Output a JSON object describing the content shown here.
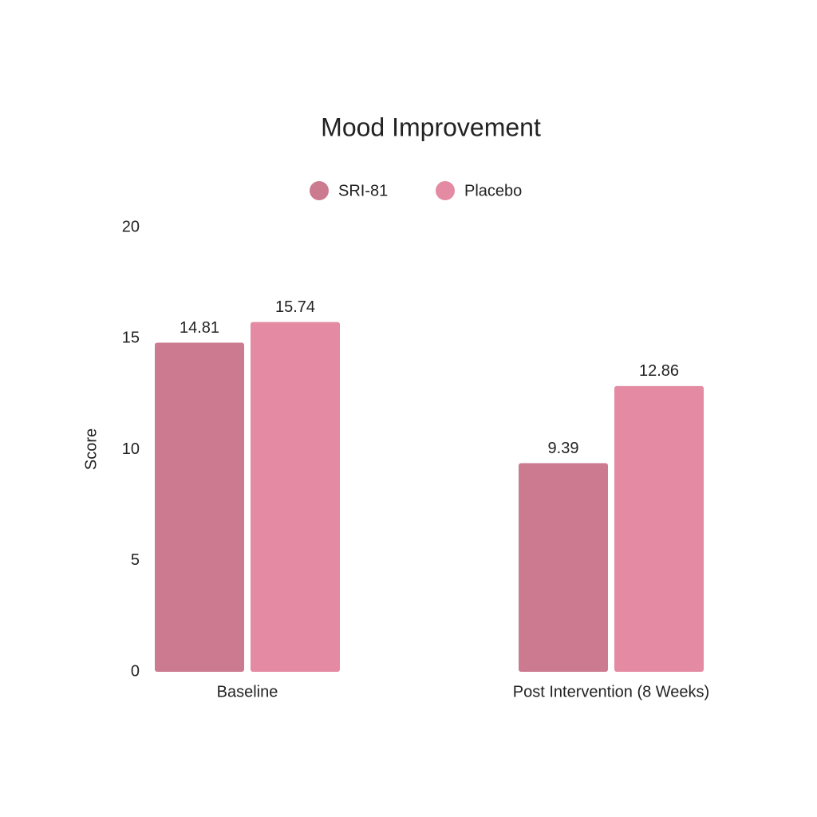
{
  "chart_data": {
    "type": "bar",
    "title": "Mood Improvement",
    "y_label": "Score",
    "categories": [
      "Baseline",
      "Post Intervention (8 Weeks)"
    ],
    "series": [
      {
        "name": "SRI-81",
        "color": "#cc7a90",
        "values": [
          14.81,
          9.39
        ]
      },
      {
        "name": "Placebo",
        "color": "#e48aa3",
        "values": [
          15.74,
          12.86
        ]
      }
    ],
    "ylim": [
      0,
      20
    ],
    "yticks": [
      0,
      5,
      10,
      15,
      20
    ],
    "grid": false
  }
}
